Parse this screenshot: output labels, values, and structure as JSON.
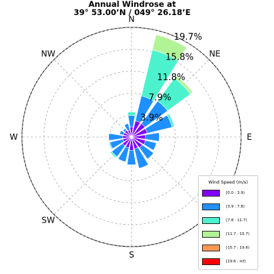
{
  "header": {
    "title_line1": "Annual Windrose at",
    "title_line2": "39° 53.00’N / 049° 26.18’E"
  },
  "chart_data": {
    "type": "windrose",
    "directions": [
      "N",
      "NNE",
      "NE",
      "ENE",
      "E",
      "ESE",
      "SE",
      "SSE",
      "S",
      "SSW",
      "SW",
      "WSW",
      "W",
      "WNW",
      "NW",
      "NNW"
    ],
    "compass_labels": [
      "N",
      "NE",
      "E",
      "SE",
      "S",
      "SW",
      "W",
      "NW"
    ],
    "radial_tick_labels": [
      "3.9%",
      "7.9%",
      "11.8%",
      "15.8%",
      "19.7%"
    ],
    "radial_max": 19.7,
    "grid": true,
    "legend_position": "bottom-right",
    "legend_title": "Wind Speed (m/s)",
    "bins": [
      {
        "label": "[0.0 : 3.9)",
        "color": "#8000ff"
      },
      {
        "label": "[3.9 : 7.8)",
        "color": "#1e90ff"
      },
      {
        "label": "[7.8 : 11.7)",
        "color": "#4cf2ce"
      },
      {
        "label": "[11.7 : 15.7)",
        "color": "#b2f396"
      },
      {
        "label": "[15.7 : 19.6)",
        "color": "#ff9955"
      },
      {
        "label": "[19.6 : inf)",
        "color": "#ff0000"
      }
    ],
    "series": [
      {
        "direction": "N",
        "values": [
          1.8,
          2.1,
          0.6,
          0.0,
          0.0,
          0.0
        ]
      },
      {
        "direction": "NNE",
        "values": [
          3.0,
          4.6,
          8.5,
          2.8,
          0.0,
          0.0
        ]
      },
      {
        "direction": "NE",
        "values": [
          3.0,
          5.0,
          5.1,
          0.5,
          0.0,
          0.0
        ]
      },
      {
        "direction": "ENE",
        "values": [
          2.9,
          4.6,
          0.4,
          0.0,
          0.0,
          0.0
        ]
      },
      {
        "direction": "E",
        "values": [
          2.5,
          2.5,
          0.0,
          0.0,
          0.0,
          0.0
        ]
      },
      {
        "direction": "ESE",
        "values": [
          2.6,
          2.0,
          0.0,
          0.0,
          0.0,
          0.0
        ]
      },
      {
        "direction": "SE",
        "values": [
          2.4,
          2.5,
          0.0,
          0.0,
          0.0,
          0.0
        ]
      },
      {
        "direction": "SSE",
        "values": [
          2.2,
          3.6,
          0.0,
          0.0,
          0.0,
          0.0
        ]
      },
      {
        "direction": "S",
        "values": [
          2.4,
          2.6,
          0.0,
          0.0,
          0.0,
          0.0
        ]
      },
      {
        "direction": "SSW",
        "values": [
          2.0,
          2.6,
          0.1,
          0.0,
          0.0,
          0.0
        ]
      },
      {
        "direction": "SW",
        "values": [
          2.0,
          2.4,
          0.3,
          0.0,
          0.0,
          0.0
        ]
      },
      {
        "direction": "WSW",
        "values": [
          1.6,
          2.4,
          0.2,
          0.0,
          0.0,
          0.0
        ]
      },
      {
        "direction": "W",
        "values": [
          1.6,
          2.5,
          0.0,
          0.0,
          0.0,
          0.0
        ]
      },
      {
        "direction": "WNW",
        "values": [
          1.5,
          0.7,
          0.0,
          0.0,
          0.0,
          0.0
        ]
      },
      {
        "direction": "NW",
        "values": [
          1.5,
          0.4,
          0.0,
          0.0,
          0.0,
          0.0
        ]
      },
      {
        "direction": "NNW",
        "values": [
          1.3,
          1.2,
          0.0,
          0.0,
          0.0,
          0.0
        ]
      }
    ]
  }
}
